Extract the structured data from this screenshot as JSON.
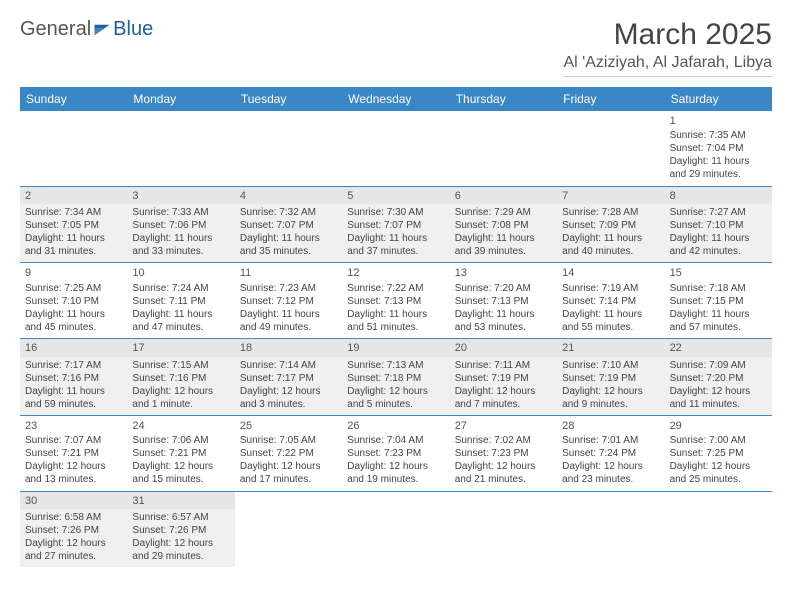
{
  "brand": {
    "part1": "General",
    "part2": "Blue"
  },
  "title": "March 2025",
  "location": "Al 'Aziziyah, Al Jafarah, Libya",
  "colors": {
    "header_bg": "#3a87c7",
    "header_text": "#ffffff",
    "text": "#444444",
    "shade_bg": "#f0f0f0",
    "border": "#3a87c7"
  },
  "daynames": [
    "Sunday",
    "Monday",
    "Tuesday",
    "Wednesday",
    "Thursday",
    "Friday",
    "Saturday"
  ],
  "weeks": [
    {
      "shade": false,
      "days": [
        null,
        null,
        null,
        null,
        null,
        null,
        {
          "n": "1",
          "sr": "Sunrise: 7:35 AM",
          "ss": "Sunset: 7:04 PM",
          "dl": "Daylight: 11 hours and 29 minutes."
        }
      ]
    },
    {
      "shade": true,
      "days": [
        {
          "n": "2",
          "sr": "Sunrise: 7:34 AM",
          "ss": "Sunset: 7:05 PM",
          "dl": "Daylight: 11 hours and 31 minutes."
        },
        {
          "n": "3",
          "sr": "Sunrise: 7:33 AM",
          "ss": "Sunset: 7:06 PM",
          "dl": "Daylight: 11 hours and 33 minutes."
        },
        {
          "n": "4",
          "sr": "Sunrise: 7:32 AM",
          "ss": "Sunset: 7:07 PM",
          "dl": "Daylight: 11 hours and 35 minutes."
        },
        {
          "n": "5",
          "sr": "Sunrise: 7:30 AM",
          "ss": "Sunset: 7:07 PM",
          "dl": "Daylight: 11 hours and 37 minutes."
        },
        {
          "n": "6",
          "sr": "Sunrise: 7:29 AM",
          "ss": "Sunset: 7:08 PM",
          "dl": "Daylight: 11 hours and 39 minutes."
        },
        {
          "n": "7",
          "sr": "Sunrise: 7:28 AM",
          "ss": "Sunset: 7:09 PM",
          "dl": "Daylight: 11 hours and 40 minutes."
        },
        {
          "n": "8",
          "sr": "Sunrise: 7:27 AM",
          "ss": "Sunset: 7:10 PM",
          "dl": "Daylight: 11 hours and 42 minutes."
        }
      ]
    },
    {
      "shade": false,
      "days": [
        {
          "n": "9",
          "sr": "Sunrise: 7:25 AM",
          "ss": "Sunset: 7:10 PM",
          "dl": "Daylight: 11 hours and 45 minutes."
        },
        {
          "n": "10",
          "sr": "Sunrise: 7:24 AM",
          "ss": "Sunset: 7:11 PM",
          "dl": "Daylight: 11 hours and 47 minutes."
        },
        {
          "n": "11",
          "sr": "Sunrise: 7:23 AM",
          "ss": "Sunset: 7:12 PM",
          "dl": "Daylight: 11 hours and 49 minutes."
        },
        {
          "n": "12",
          "sr": "Sunrise: 7:22 AM",
          "ss": "Sunset: 7:13 PM",
          "dl": "Daylight: 11 hours and 51 minutes."
        },
        {
          "n": "13",
          "sr": "Sunrise: 7:20 AM",
          "ss": "Sunset: 7:13 PM",
          "dl": "Daylight: 11 hours and 53 minutes."
        },
        {
          "n": "14",
          "sr": "Sunrise: 7:19 AM",
          "ss": "Sunset: 7:14 PM",
          "dl": "Daylight: 11 hours and 55 minutes."
        },
        {
          "n": "15",
          "sr": "Sunrise: 7:18 AM",
          "ss": "Sunset: 7:15 PM",
          "dl": "Daylight: 11 hours and 57 minutes."
        }
      ]
    },
    {
      "shade": true,
      "days": [
        {
          "n": "16",
          "sr": "Sunrise: 7:17 AM",
          "ss": "Sunset: 7:16 PM",
          "dl": "Daylight: 11 hours and 59 minutes."
        },
        {
          "n": "17",
          "sr": "Sunrise: 7:15 AM",
          "ss": "Sunset: 7:16 PM",
          "dl": "Daylight: 12 hours and 1 minute."
        },
        {
          "n": "18",
          "sr": "Sunrise: 7:14 AM",
          "ss": "Sunset: 7:17 PM",
          "dl": "Daylight: 12 hours and 3 minutes."
        },
        {
          "n": "19",
          "sr": "Sunrise: 7:13 AM",
          "ss": "Sunset: 7:18 PM",
          "dl": "Daylight: 12 hours and 5 minutes."
        },
        {
          "n": "20",
          "sr": "Sunrise: 7:11 AM",
          "ss": "Sunset: 7:19 PM",
          "dl": "Daylight: 12 hours and 7 minutes."
        },
        {
          "n": "21",
          "sr": "Sunrise: 7:10 AM",
          "ss": "Sunset: 7:19 PM",
          "dl": "Daylight: 12 hours and 9 minutes."
        },
        {
          "n": "22",
          "sr": "Sunrise: 7:09 AM",
          "ss": "Sunset: 7:20 PM",
          "dl": "Daylight: 12 hours and 11 minutes."
        }
      ]
    },
    {
      "shade": false,
      "days": [
        {
          "n": "23",
          "sr": "Sunrise: 7:07 AM",
          "ss": "Sunset: 7:21 PM",
          "dl": "Daylight: 12 hours and 13 minutes."
        },
        {
          "n": "24",
          "sr": "Sunrise: 7:06 AM",
          "ss": "Sunset: 7:21 PM",
          "dl": "Daylight: 12 hours and 15 minutes."
        },
        {
          "n": "25",
          "sr": "Sunrise: 7:05 AM",
          "ss": "Sunset: 7:22 PM",
          "dl": "Daylight: 12 hours and 17 minutes."
        },
        {
          "n": "26",
          "sr": "Sunrise: 7:04 AM",
          "ss": "Sunset: 7:23 PM",
          "dl": "Daylight: 12 hours and 19 minutes."
        },
        {
          "n": "27",
          "sr": "Sunrise: 7:02 AM",
          "ss": "Sunset: 7:23 PM",
          "dl": "Daylight: 12 hours and 21 minutes."
        },
        {
          "n": "28",
          "sr": "Sunrise: 7:01 AM",
          "ss": "Sunset: 7:24 PM",
          "dl": "Daylight: 12 hours and 23 minutes."
        },
        {
          "n": "29",
          "sr": "Sunrise: 7:00 AM",
          "ss": "Sunset: 7:25 PM",
          "dl": "Daylight: 12 hours and 25 minutes."
        }
      ]
    },
    {
      "shade": true,
      "days": [
        {
          "n": "30",
          "sr": "Sunrise: 6:58 AM",
          "ss": "Sunset: 7:26 PM",
          "dl": "Daylight: 12 hours and 27 minutes."
        },
        {
          "n": "31",
          "sr": "Sunrise: 6:57 AM",
          "ss": "Sunset: 7:26 PM",
          "dl": "Daylight: 12 hours and 29 minutes."
        },
        null,
        null,
        null,
        null,
        null
      ]
    }
  ]
}
